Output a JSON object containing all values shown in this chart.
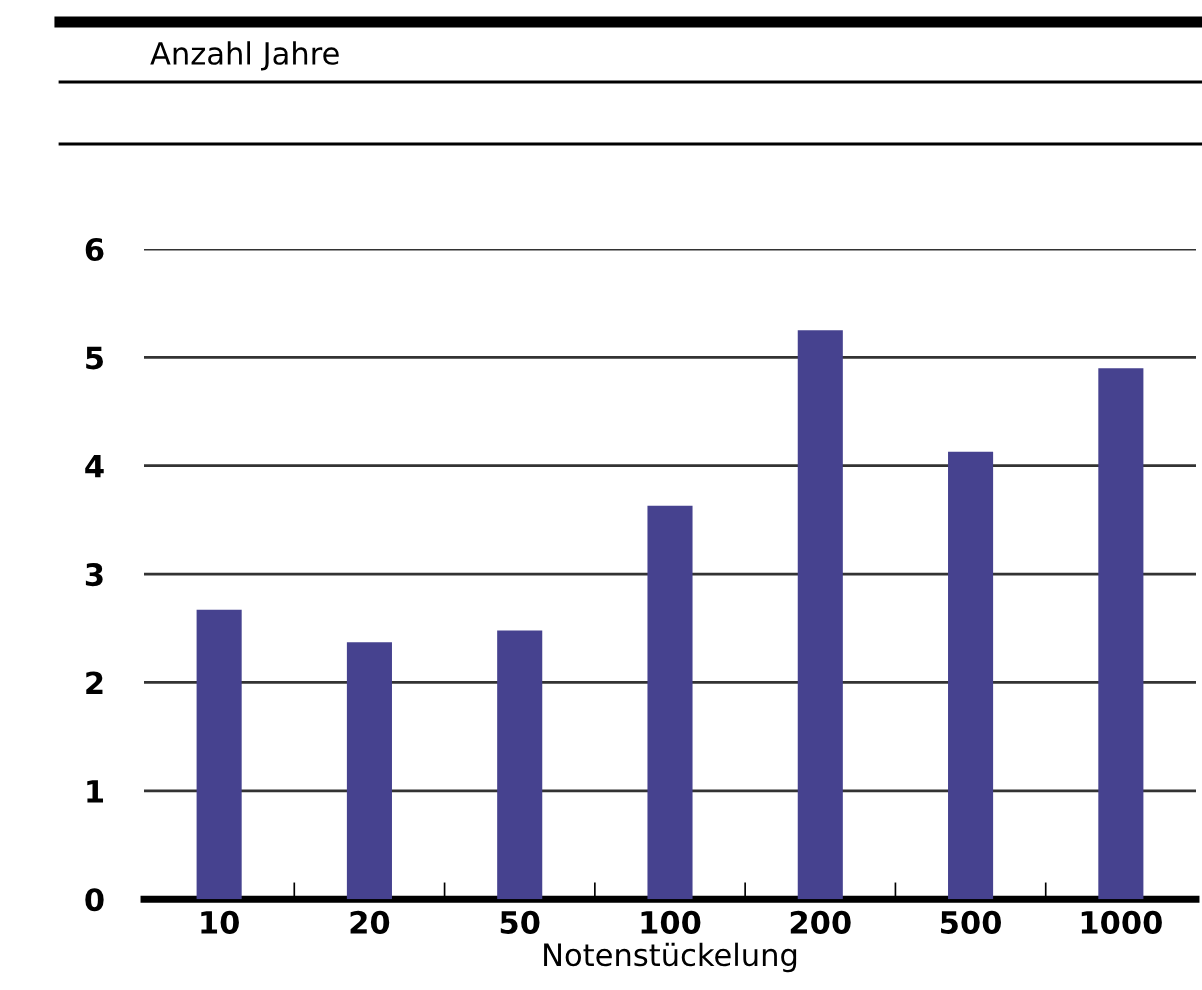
{
  "chart_data": {
    "type": "bar",
    "annotations": [
      "Anzahl Jahre"
    ],
    "xlabel": "Notenstückelung",
    "categories": [
      "10",
      "20",
      "50",
      "100",
      "200",
      "500",
      "1000"
    ],
    "values": [
      2.67,
      2.37,
      2.48,
      3.63,
      5.25,
      4.13,
      4.9
    ],
    "color": "#46428f",
    "ylim": [
      0,
      6
    ],
    "yticks": [
      0,
      1,
      2,
      3,
      4,
      5,
      6
    ],
    "grid": "y"
  }
}
